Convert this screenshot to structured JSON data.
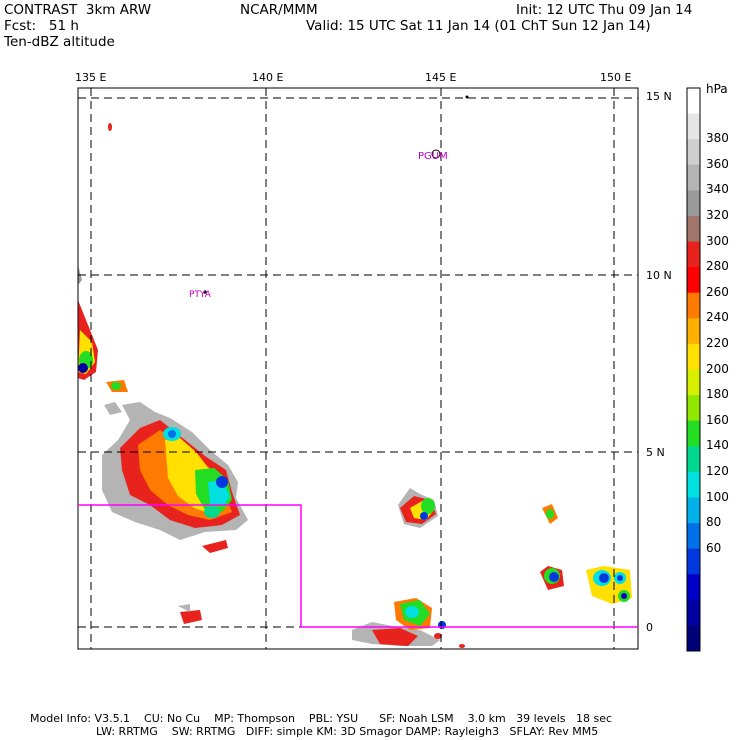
{
  "header": {
    "line1_left": "CONTRAST  3km ARW",
    "line1_center": "NCAR/MMM",
    "line1_right": "Init: 12 UTC Thu 09 Jan 14",
    "line2_left": "Fcst:   51 h",
    "line2_right": "Valid: 15 UTC Sat 11 Jan 14 (01 ChT Sun 12 Jan 14)",
    "line3_left": "Ten-dBZ altitude"
  },
  "map": {
    "lon_labels": [
      "135 E",
      "140 E",
      "145 E",
      "150 E"
    ],
    "lat_labels": [
      "15 N",
      "10 N",
      "5 N",
      "0"
    ],
    "stations": [
      "PGUM",
      "PTYA"
    ]
  },
  "colorbar": {
    "unit": "hPa",
    "labels": [
      "380",
      "360",
      "340",
      "320",
      "300",
      "280",
      "260",
      "240",
      "220",
      "200",
      "180",
      "160",
      "140",
      "120",
      "100",
      "80",
      "60"
    ],
    "colors": [
      "#ffffff",
      "#e6e6e6",
      "#cfcfcf",
      "#b4b4b4",
      "#9a9a9a",
      "#a0766c",
      "#e8231e",
      "#ff0000",
      "#ff7a00",
      "#ffb000",
      "#ffe000",
      "#d8f000",
      "#90e800",
      "#22dd22",
      "#00d890",
      "#00e0e0",
      "#00b0e8",
      "#0070e8",
      "#0038e0",
      "#0000c8",
      "#0000a0",
      "#000078"
    ]
  },
  "footer": {
    "line1": "Model Info: V3.5.1    CU: No Cu    MP: Thompson    PBL: YSU      SF: Noah LSM    3.0 km   39 levels   18 sec",
    "line2": "LW: RRTMG    SW: RRTMG   DIFF: simple KM: 3D Smagor DAMP: Rayleigh3   SFLAY: Rev MM5"
  }
}
